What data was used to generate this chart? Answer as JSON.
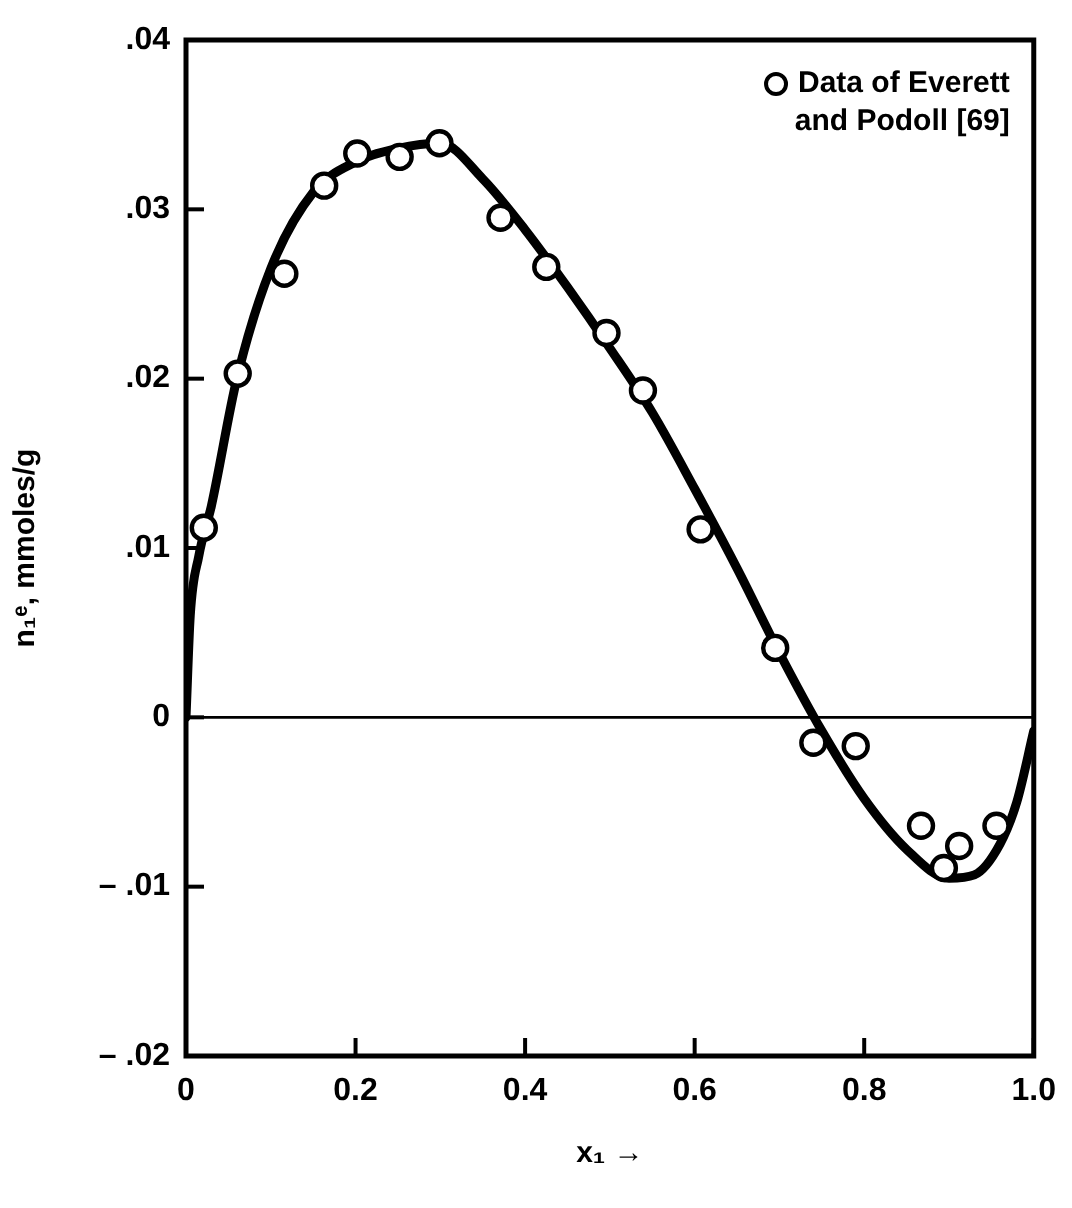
{
  "chart_data": {
    "type": "scatter",
    "xlabel": "x₁ →",
    "ylabel": "n₁ᵉ, mmoles/g",
    "xlim": [
      0,
      1
    ],
    "ylim": [
      -0.02,
      0.04
    ],
    "xticks": [
      0,
      0.2,
      0.4,
      0.6,
      0.8,
      {
        "value": 1,
        "label": "1.0"
      }
    ],
    "yticks": [
      {
        "value": -0.02,
        "label": "– .02"
      },
      {
        "value": -0.01,
        "label": "– .01"
      },
      0,
      {
        "value": 0.01,
        "label": ".01"
      },
      {
        "value": 0.02,
        "label": ".02"
      },
      {
        "value": 0.03,
        "label": ".03"
      },
      {
        "value": 0.04,
        "label": ".04"
      }
    ],
    "grid": false,
    "legend": "top right",
    "marker": "circle",
    "ref_lines": [
      {
        "axis": "y",
        "value": 0,
        "color": "#000000"
      }
    ],
    "series": [
      {
        "name": "Data of Everett and Podoll [69]",
        "color": "#000000",
        "x": [
          0.021,
          0.061,
          0.116,
          0.163,
          0.202,
          0.252,
          0.299,
          0.371,
          0.425,
          0.496,
          0.539,
          0.607,
          0.695,
          0.74,
          0.79,
          0.867,
          0.894,
          0.912,
          0.956
        ],
        "values": [
          0.0112,
          0.0203,
          0.0262,
          0.0314,
          0.0333,
          0.0331,
          0.0339,
          0.0295,
          0.0266,
          0.0227,
          0.0193,
          0.0111,
          0.0041,
          -0.0015,
          -0.0017,
          -0.0064,
          -0.0089,
          -0.0076,
          -0.0064
        ]
      },
      {
        "color": "#000000",
        "type": "line",
        "marker": "none",
        "line_style": "solid",
        "x": [
          0,
          0.005,
          0.015,
          0.03,
          0.06,
          0.1,
          0.15,
          0.2,
          0.25,
          0.3,
          0.35,
          0.4,
          0.45,
          0.5,
          0.55,
          0.6,
          0.65,
          0.7,
          0.75,
          0.8,
          0.85,
          0.9,
          0.93,
          0.96,
          0.98,
          1
        ],
        "values": [
          0,
          0.006,
          0.0095,
          0.0125,
          0.02,
          0.0265,
          0.031,
          0.0328,
          0.0336,
          0.0339,
          0.0318,
          0.0288,
          0.0254,
          0.0218,
          0.018,
          0.0135,
          0.0088,
          0.0038,
          -0.0008,
          -0.0048,
          -0.0078,
          -0.0095,
          -0.0093,
          -0.0075,
          -0.005,
          -0.0008
        ]
      }
    ]
  }
}
